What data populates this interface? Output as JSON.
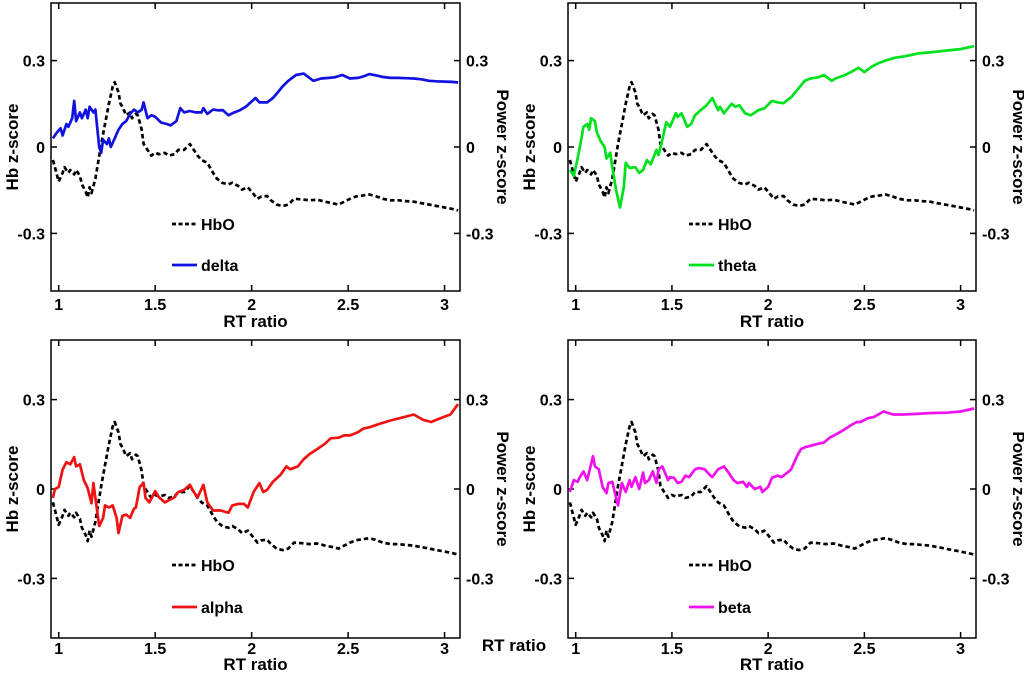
{
  "figure": {
    "background": "#ffffff",
    "stray_xlabel": "RT ratio"
  },
  "colors": {
    "hbo": "#000000",
    "delta": "#1212e0",
    "theta": "#00e11e",
    "alpha": "#ef1212",
    "beta": "#ef12ef",
    "axis": "#000000"
  },
  "hbo": {
    "name": "HbO",
    "style": "dashed",
    "color": "#000000",
    "x": [
      0.97,
      0.98,
      1.0,
      1.02,
      1.03,
      1.05,
      1.06,
      1.08,
      1.09,
      1.11,
      1.12,
      1.14,
      1.15,
      1.16,
      1.17,
      1.19,
      1.2,
      1.22,
      1.24,
      1.26,
      1.28,
      1.29,
      1.31,
      1.32,
      1.33,
      1.35,
      1.37,
      1.38,
      1.4,
      1.41,
      1.43,
      1.44,
      1.46,
      1.48,
      1.5,
      1.52,
      1.55,
      1.57,
      1.6,
      1.62,
      1.65,
      1.68,
      1.7,
      1.72,
      1.74,
      1.77,
      1.8,
      1.82,
      1.85,
      1.88,
      1.9,
      1.93,
      1.95,
      1.98,
      2.0,
      2.03,
      2.05,
      2.08,
      2.1,
      2.13,
      2.16,
      2.19,
      2.22,
      2.26,
      2.3,
      2.34,
      2.38,
      2.42,
      2.45,
      2.48,
      2.51,
      2.54,
      2.58,
      2.61,
      2.64,
      2.68,
      2.72,
      2.76,
      2.8,
      2.84,
      2.88,
      2.92,
      2.96,
      3.0,
      3.04,
      3.07
    ],
    "y": [
      -0.045,
      -0.07,
      -0.12,
      -0.09,
      -0.07,
      -0.09,
      -0.08,
      -0.095,
      -0.08,
      -0.1,
      -0.13,
      -0.155,
      -0.175,
      -0.14,
      -0.16,
      -0.11,
      -0.07,
      0.01,
      0.08,
      0.15,
      0.21,
      0.225,
      0.19,
      0.15,
      0.14,
      0.11,
      0.12,
      0.1,
      0.115,
      0.11,
      0.06,
      0.01,
      -0.01,
      -0.03,
      -0.02,
      -0.025,
      -0.02,
      -0.03,
      -0.025,
      -0.01,
      -0.01,
      0.01,
      -0.01,
      -0.03,
      -0.045,
      -0.055,
      -0.09,
      -0.11,
      -0.125,
      -0.13,
      -0.124,
      -0.135,
      -0.148,
      -0.14,
      -0.155,
      -0.18,
      -0.172,
      -0.17,
      -0.185,
      -0.2,
      -0.205,
      -0.2,
      -0.18,
      -0.182,
      -0.185,
      -0.183,
      -0.19,
      -0.195,
      -0.2,
      -0.19,
      -0.18,
      -0.172,
      -0.168,
      -0.165,
      -0.17,
      -0.18,
      -0.185,
      -0.185,
      -0.188,
      -0.19,
      -0.195,
      -0.2,
      -0.205,
      -0.21,
      -0.215,
      -0.22
    ]
  },
  "chart_data": [
    {
      "type": "line",
      "panel": "top-left",
      "xlabel": "RT ratio",
      "ylabel_left": "Hb z-score",
      "ylabel_right": "Power z-score",
      "xlim": [
        0.96,
        3.08
      ],
      "ylim": [
        -0.5,
        0.5
      ],
      "x_ticks": [
        1,
        1.5,
        2,
        2.5,
        3
      ],
      "x_tick_labels": [
        "1",
        "1.5",
        "2",
        "2.5",
        "3"
      ],
      "y_ticks": [
        0.3,
        0,
        -0.3
      ],
      "y_tick_labels": [
        "0.3",
        "0",
        "-0.3"
      ],
      "grid": false,
      "legend": [
        "HbO",
        "delta"
      ],
      "legend_position": "lower-center",
      "series": [
        {
          "ref": "hbo"
        },
        {
          "name": "delta",
          "style": "solid",
          "color": "#1212e0",
          "x": [
            0.97,
            0.99,
            1.01,
            1.02,
            1.04,
            1.05,
            1.07,
            1.08,
            1.09,
            1.11,
            1.12,
            1.14,
            1.15,
            1.16,
            1.18,
            1.19,
            1.21,
            1.22,
            1.23,
            1.25,
            1.26,
            1.27,
            1.29,
            1.31,
            1.33,
            1.35,
            1.37,
            1.39,
            1.41,
            1.43,
            1.44,
            1.46,
            1.48,
            1.5,
            1.53,
            1.56,
            1.58,
            1.61,
            1.63,
            1.65,
            1.68,
            1.71,
            1.74,
            1.75,
            1.77,
            1.8,
            1.83,
            1.85,
            1.88,
            1.9,
            1.94,
            1.97,
            1.99,
            2.02,
            2.04,
            2.08,
            2.11,
            2.13,
            2.16,
            2.19,
            2.23,
            2.27,
            2.3,
            2.32,
            2.36,
            2.4,
            2.43,
            2.47,
            2.51,
            2.55,
            2.58,
            2.61,
            2.65,
            2.68,
            2.72,
            2.76,
            2.8,
            2.84,
            2.88,
            2.92,
            2.96,
            3.0,
            3.04,
            3.07
          ],
          "y": [
            0.03,
            0.05,
            0.065,
            0.04,
            0.08,
            0.07,
            0.1,
            0.16,
            0.09,
            0.12,
            0.1,
            0.13,
            0.1,
            0.14,
            0.12,
            0.13,
            0.0,
            -0.02,
            0.025,
            0.01,
            0.03,
            0.0,
            0.03,
            0.06,
            0.08,
            0.09,
            0.115,
            0.13,
            0.12,
            0.13,
            0.155,
            0.1,
            0.11,
            0.105,
            0.085,
            0.08,
            0.075,
            0.09,
            0.135,
            0.12,
            0.125,
            0.12,
            0.12,
            0.135,
            0.115,
            0.13,
            0.127,
            0.128,
            0.11,
            0.117,
            0.128,
            0.14,
            0.152,
            0.17,
            0.155,
            0.155,
            0.17,
            0.185,
            0.21,
            0.23,
            0.25,
            0.255,
            0.24,
            0.23,
            0.238,
            0.24,
            0.242,
            0.25,
            0.238,
            0.24,
            0.245,
            0.253,
            0.248,
            0.243,
            0.24,
            0.24,
            0.239,
            0.238,
            0.235,
            0.23,
            0.228,
            0.227,
            0.226,
            0.224
          ]
        }
      ]
    },
    {
      "type": "line",
      "panel": "top-right",
      "xlabel": "RT ratio",
      "ylabel_left": "Hb z-score",
      "ylabel_right": "Power z-score",
      "xlim": [
        0.96,
        3.08
      ],
      "ylim": [
        -0.5,
        0.5
      ],
      "x_ticks": [
        1,
        1.5,
        2,
        2.5,
        3
      ],
      "x_tick_labels": [
        "1",
        "1.5",
        "2",
        "2.5",
        "3"
      ],
      "y_ticks": [
        0.3,
        0,
        -0.3
      ],
      "y_tick_labels": [
        "0.3",
        "0",
        "-0.3"
      ],
      "grid": false,
      "legend": [
        "HbO",
        "theta"
      ],
      "legend_position": "lower-center",
      "series": [
        {
          "ref": "hbo"
        },
        {
          "name": "theta",
          "style": "solid",
          "color": "#00e11e",
          "x": [
            0.97,
            0.99,
            1.01,
            1.03,
            1.04,
            1.06,
            1.07,
            1.08,
            1.1,
            1.11,
            1.13,
            1.15,
            1.16,
            1.18,
            1.19,
            1.21,
            1.23,
            1.25,
            1.26,
            1.28,
            1.31,
            1.33,
            1.35,
            1.37,
            1.39,
            1.42,
            1.43,
            1.45,
            1.47,
            1.49,
            1.52,
            1.53,
            1.55,
            1.58,
            1.6,
            1.62,
            1.65,
            1.68,
            1.71,
            1.74,
            1.75,
            1.77,
            1.81,
            1.83,
            1.85,
            1.88,
            1.91,
            1.95,
            1.98,
            2.02,
            2.05,
            2.08,
            2.12,
            2.15,
            2.19,
            2.22,
            2.26,
            2.29,
            2.33,
            2.35,
            2.4,
            2.43,
            2.47,
            2.5,
            2.54,
            2.57,
            2.61,
            2.66,
            2.71,
            2.78,
            2.86,
            2.93,
            3.0,
            3.07
          ],
          "y": [
            -0.08,
            -0.1,
            -0.04,
            0.03,
            0.07,
            0.08,
            0.06,
            0.1,
            0.09,
            0.05,
            0.02,
            0.0,
            -0.04,
            -0.02,
            -0.07,
            -0.15,
            -0.21,
            -0.14,
            -0.055,
            -0.073,
            -0.07,
            -0.09,
            -0.08,
            -0.045,
            -0.06,
            -0.01,
            -0.028,
            0.024,
            0.086,
            0.07,
            0.117,
            0.104,
            0.117,
            0.07,
            0.08,
            0.11,
            0.128,
            0.145,
            0.17,
            0.128,
            0.14,
            0.117,
            0.15,
            0.14,
            0.145,
            0.117,
            0.11,
            0.128,
            0.134,
            0.16,
            0.155,
            0.152,
            0.173,
            0.197,
            0.23,
            0.238,
            0.242,
            0.25,
            0.23,
            0.238,
            0.25,
            0.26,
            0.275,
            0.26,
            0.28,
            0.29,
            0.3,
            0.31,
            0.315,
            0.325,
            0.33,
            0.335,
            0.34,
            0.35
          ]
        }
      ]
    },
    {
      "type": "line",
      "panel": "bottom-left",
      "xlabel": "RT ratio",
      "ylabel_left": "Hb z-score",
      "ylabel_right": "Power z-score",
      "xlim": [
        0.96,
        3.08
      ],
      "ylim": [
        -0.5,
        0.5
      ],
      "x_ticks": [
        1,
        1.5,
        2,
        2.5,
        3
      ],
      "x_tick_labels": [
        "1",
        "1.5",
        "2",
        "2.5",
        "3"
      ],
      "y_ticks": [
        0.3,
        0,
        -0.3
      ],
      "y_tick_labels": [
        "0.3",
        "0",
        "-0.3"
      ],
      "grid": false,
      "legend": [
        "HbO",
        "alpha"
      ],
      "legend_position": "lower-center",
      "series": [
        {
          "ref": "hbo"
        },
        {
          "name": "alpha",
          "style": "solid",
          "color": "#ef1212",
          "x": [
            0.97,
            0.98,
            1.0,
            1.02,
            1.04,
            1.06,
            1.08,
            1.09,
            1.11,
            1.13,
            1.15,
            1.17,
            1.18,
            1.21,
            1.23,
            1.24,
            1.26,
            1.28,
            1.3,
            1.31,
            1.33,
            1.35,
            1.37,
            1.39,
            1.4,
            1.42,
            1.44,
            1.45,
            1.47,
            1.5,
            1.52,
            1.55,
            1.57,
            1.6,
            1.62,
            1.65,
            1.68,
            1.7,
            1.72,
            1.75,
            1.77,
            1.8,
            1.84,
            1.88,
            1.9,
            1.93,
            1.96,
            1.98,
            2.01,
            2.04,
            2.06,
            2.08,
            2.11,
            2.15,
            2.18,
            2.2,
            2.24,
            2.27,
            2.3,
            2.34,
            2.38,
            2.41,
            2.45,
            2.48,
            2.51,
            2.55,
            2.58,
            2.61,
            2.67,
            2.72,
            2.77,
            2.84,
            2.89,
            2.93,
            2.98,
            3.03,
            3.07
          ],
          "y": [
            -0.03,
            0.0,
            0.007,
            0.065,
            0.09,
            0.083,
            0.107,
            0.076,
            0.083,
            0.03,
            0.003,
            -0.048,
            0.02,
            -0.124,
            -0.097,
            -0.055,
            -0.062,
            -0.055,
            -0.097,
            -0.148,
            -0.09,
            -0.086,
            -0.097,
            -0.066,
            -0.062,
            0.007,
            0.02,
            -0.03,
            -0.045,
            -0.007,
            -0.028,
            -0.045,
            -0.038,
            -0.028,
            -0.01,
            -0.003,
            0.014,
            -0.01,
            -0.028,
            0.014,
            -0.045,
            -0.072,
            -0.072,
            -0.08,
            -0.055,
            -0.05,
            -0.05,
            -0.062,
            -0.01,
            0.02,
            -0.01,
            -0.003,
            0.024,
            0.048,
            0.076,
            0.066,
            0.076,
            0.1,
            0.117,
            0.134,
            0.152,
            0.17,
            0.172,
            0.18,
            0.18,
            0.19,
            0.203,
            0.207,
            0.22,
            0.23,
            0.238,
            0.25,
            0.232,
            0.225,
            0.238,
            0.25,
            0.285
          ]
        }
      ]
    },
    {
      "type": "line",
      "panel": "bottom-right",
      "xlabel": "RT ratio",
      "ylabel_left": "Hb z-score",
      "ylabel_right": "Power z-score",
      "xlim": [
        0.96,
        3.08
      ],
      "ylim": [
        -0.5,
        0.5
      ],
      "x_ticks": [
        1,
        1.5,
        2,
        2.5,
        3
      ],
      "x_tick_labels": [
        "1",
        "1.5",
        "2",
        "2.5",
        "3"
      ],
      "y_ticks": [
        0.3,
        0,
        -0.3
      ],
      "y_tick_labels": [
        "0.3",
        "0",
        "-0.3"
      ],
      "grid": false,
      "legend": [
        "HbO",
        "beta"
      ],
      "legend_position": "lower-center",
      "series": [
        {
          "ref": "hbo"
        },
        {
          "name": "beta",
          "style": "solid",
          "color": "#ef12ef",
          "x": [
            0.97,
            0.99,
            1.01,
            1.02,
            1.04,
            1.06,
            1.09,
            1.1,
            1.12,
            1.14,
            1.16,
            1.17,
            1.19,
            1.21,
            1.22,
            1.24,
            1.26,
            1.28,
            1.29,
            1.31,
            1.33,
            1.35,
            1.36,
            1.38,
            1.4,
            1.42,
            1.43,
            1.45,
            1.48,
            1.49,
            1.51,
            1.53,
            1.55,
            1.57,
            1.59,
            1.62,
            1.64,
            1.67,
            1.7,
            1.71,
            1.74,
            1.77,
            1.79,
            1.82,
            1.84,
            1.87,
            1.89,
            1.9,
            1.93,
            1.96,
            1.97,
            2.0,
            2.02,
            2.05,
            2.07,
            2.1,
            2.12,
            2.15,
            2.17,
            2.19,
            2.22,
            2.26,
            2.29,
            2.32,
            2.36,
            2.39,
            2.43,
            2.46,
            2.48,
            2.52,
            2.55,
            2.6,
            2.65,
            2.7,
            2.77,
            2.85,
            2.93,
            3.0,
            3.07
          ],
          "y": [
            -0.01,
            0.03,
            0.024,
            0.038,
            0.059,
            0.03,
            0.11,
            0.076,
            0.066,
            0.007,
            -0.014,
            0.02,
            0.024,
            -0.03,
            -0.055,
            0.02,
            -0.01,
            0.03,
            0.007,
            0.04,
            0.0,
            0.055,
            0.02,
            0.03,
            0.059,
            0.02,
            0.066,
            0.076,
            0.03,
            0.04,
            0.038,
            0.02,
            0.024,
            0.045,
            0.04,
            0.066,
            0.07,
            0.066,
            0.045,
            0.04,
            0.066,
            0.076,
            0.059,
            0.03,
            0.02,
            0.024,
            0.007,
            0.02,
            0.0,
            0.007,
            -0.01,
            0.007,
            0.038,
            0.045,
            0.04,
            0.055,
            0.066,
            0.11,
            0.134,
            0.14,
            0.145,
            0.152,
            0.156,
            0.172,
            0.186,
            0.197,
            0.214,
            0.225,
            0.225,
            0.238,
            0.242,
            0.26,
            0.25,
            0.25,
            0.252,
            0.255,
            0.256,
            0.26,
            0.27
          ]
        }
      ]
    }
  ]
}
